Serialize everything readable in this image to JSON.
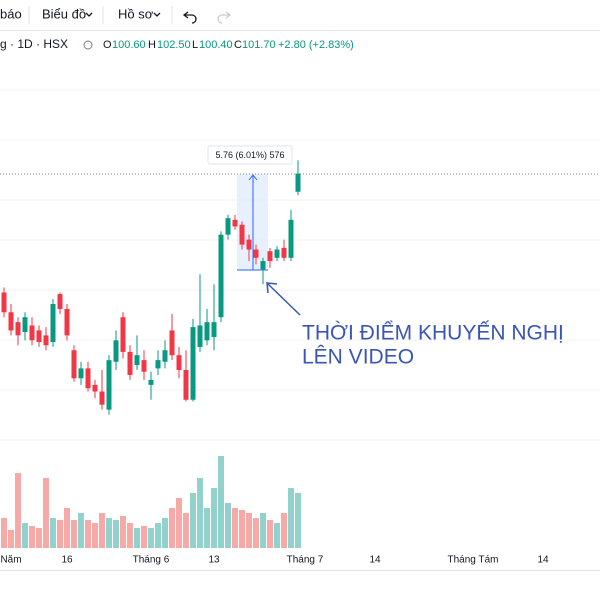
{
  "toolbar": {
    "items": [
      "báo",
      "Biểu đồ",
      "Hồ sơ"
    ]
  },
  "legend": {
    "symbol": "g · 1D · HSX",
    "open_label": "O",
    "open": "100.60",
    "high_label": "H",
    "high": "102.50",
    "low_label": "L",
    "low": "100.40",
    "close_label": "C",
    "close": "101.70",
    "change": "+2.80 (+2.83%)"
  },
  "chart_data": {
    "type": "candlestick",
    "categories": [
      null,
      "Năm",
      null,
      null,
      null,
      null,
      null,
      null,
      null,
      "16",
      null,
      null,
      null,
      null,
      null,
      null,
      null,
      null,
      null,
      null,
      null,
      "Tháng 6",
      null,
      null,
      null,
      null,
      null,
      null,
      null,
      null,
      "13",
      null,
      null,
      null,
      null,
      null,
      null,
      null,
      null,
      null,
      null,
      null,
      null,
      "Tháng 7",
      null,
      null,
      null,
      null,
      null,
      null,
      null,
      null,
      null,
      "14",
      null,
      null,
      null,
      null,
      null,
      null,
      null,
      null,
      null,
      null,
      null,
      null,
      null,
      "Tháng Tám",
      null,
      null,
      null,
      null,
      null,
      null,
      null,
      null,
      null,
      "14",
      null,
      null,
      null,
      null,
      null,
      null,
      null,
      null
    ],
    "open": [
      94.5,
      93.3,
      92.7,
      92.1,
      92.5,
      92.2,
      91.9,
      91.5,
      94.4,
      93.5,
      91.0,
      89.3,
      89.9,
      88.9,
      88.5,
      87.4,
      90.3,
      93.0,
      90.9,
      90.1,
      90.4,
      88.9,
      89.9,
      90.3,
      92.2,
      90.7,
      89.8,
      88.0,
      91.2,
      91.6,
      91.8,
      93.0,
      98.0,
      98.9,
      98.6,
      97.7,
      97.1,
      95.9,
      97.0,
      96.6,
      97.2,
      96.6,
      100.6,
      null,
      null,
      null,
      null,
      null,
      null,
      null,
      null,
      null,
      null,
      null,
      null,
      null,
      null,
      null,
      null,
      null,
      null,
      null,
      null,
      null,
      null,
      null,
      null,
      null,
      null,
      null,
      null,
      null,
      null,
      null,
      null,
      null,
      null,
      null,
      null,
      null,
      null,
      null,
      null,
      null,
      null,
      null
    ],
    "high": [
      94.8,
      93.8,
      93.0,
      93.3,
      93.0,
      92.5,
      92.4,
      94.1,
      94.5,
      93.8,
      91.3,
      90.3,
      90.3,
      89.2,
      89.8,
      90.7,
      92.2,
      93.3,
      91.3,
      91.9,
      91.0,
      89.7,
      91.0,
      91.6,
      93.2,
      91.2,
      91.0,
      92.9,
      95.6,
      93.5,
      95.0,
      98.2,
      99.2,
      99.2,
      98.8,
      98.0,
      97.4,
      96.6,
      97.2,
      97.3,
      97.7,
      99.5,
      102.5,
      null,
      null,
      null,
      null,
      null,
      null,
      null,
      null,
      null,
      null,
      null,
      null,
      null,
      null,
      null,
      null,
      null,
      null,
      null,
      null,
      null,
      null,
      null,
      null,
      null,
      null,
      null,
      null,
      null,
      null,
      null,
      null,
      null,
      null,
      null,
      null,
      null,
      null,
      null,
      null,
      null,
      null,
      null
    ],
    "low": [
      93.0,
      91.9,
      91.3,
      91.6,
      91.3,
      91.2,
      91.0,
      91.2,
      93.2,
      91.6,
      89.1,
      88.9,
      88.5,
      88.1,
      87.4,
      87.1,
      89.8,
      90.5,
      89.2,
      89.8,
      89.2,
      88.0,
      89.5,
      89.9,
      90.4,
      89.3,
      87.9,
      87.9,
      90.9,
      91.3,
      91.0,
      92.7,
      97.7,
      98.3,
      97.1,
      96.4,
      96.2,
      95.0,
      96.0,
      96.4,
      96.4,
      96.4,
      100.4,
      null,
      null,
      null,
      null,
      null,
      null,
      null,
      null,
      null,
      null,
      null,
      null,
      null,
      null,
      null,
      null,
      null,
      null,
      null,
      null,
      null,
      null,
      null,
      null,
      null,
      null,
      null,
      null,
      null,
      null,
      null,
      null,
      null,
      null,
      null,
      null,
      null,
      null,
      null,
      null,
      null,
      null,
      null
    ],
    "close": [
      93.3,
      92.2,
      91.9,
      93.0,
      91.6,
      91.5,
      91.3,
      93.8,
      93.5,
      91.9,
      89.3,
      89.9,
      88.7,
      88.5,
      87.7,
      90.4,
      91.6,
      90.9,
      89.5,
      90.7,
      89.7,
      89.2,
      90.4,
      91.0,
      90.7,
      89.8,
      88.0,
      92.4,
      92.5,
      92.7,
      92.7,
      98.0,
      99.0,
      98.5,
      97.4,
      97.1,
      96.6,
      96.4,
      96.4,
      97.1,
      96.6,
      98.9,
      101.7,
      null,
      null,
      null,
      null,
      null,
      null,
      null,
      null,
      null,
      null,
      null,
      null,
      null,
      null,
      null,
      null,
      null,
      null,
      null,
      null,
      null,
      null,
      null,
      null,
      null,
      null,
      null,
      null,
      null,
      null,
      null,
      null,
      null,
      null,
      null,
      null,
      null,
      null,
      null,
      null,
      null,
      null,
      null
    ],
    "volume": [
      30,
      18,
      75,
      25,
      22,
      20,
      70,
      30,
      28,
      40,
      28,
      35,
      28,
      25,
      35,
      30,
      28,
      32,
      25,
      20,
      22,
      20,
      25,
      30,
      40,
      50,
      35,
      55,
      70,
      40,
      60,
      92,
      45,
      40,
      38,
      35,
      30,
      35,
      28,
      25,
      35,
      60,
      55,
      null,
      null,
      null,
      null,
      null,
      null,
      null,
      null,
      null,
      null,
      null,
      null,
      null,
      null,
      null,
      null,
      null,
      null,
      null,
      null,
      null,
      null,
      null,
      null,
      null,
      null,
      null,
      null,
      null,
      null,
      null,
      null,
      null,
      null,
      null,
      null,
      null,
      null,
      null,
      null,
      null,
      null,
      null
    ],
    "up_color": "#089981",
    "down_color": "#f23645",
    "volume_up_color": "#92d2cc",
    "volume_down_color": "#f7a9a7",
    "ylim": [
      79.2,
      110.4
    ],
    "y2lim": [
      0,
      100
    ],
    "measure_label": "5.76 (6.01%) 576",
    "annotation": [
      "THỜI ĐIỂM KHUYẾN NGHỊ",
      "LÊN VIDEO"
    ]
  }
}
